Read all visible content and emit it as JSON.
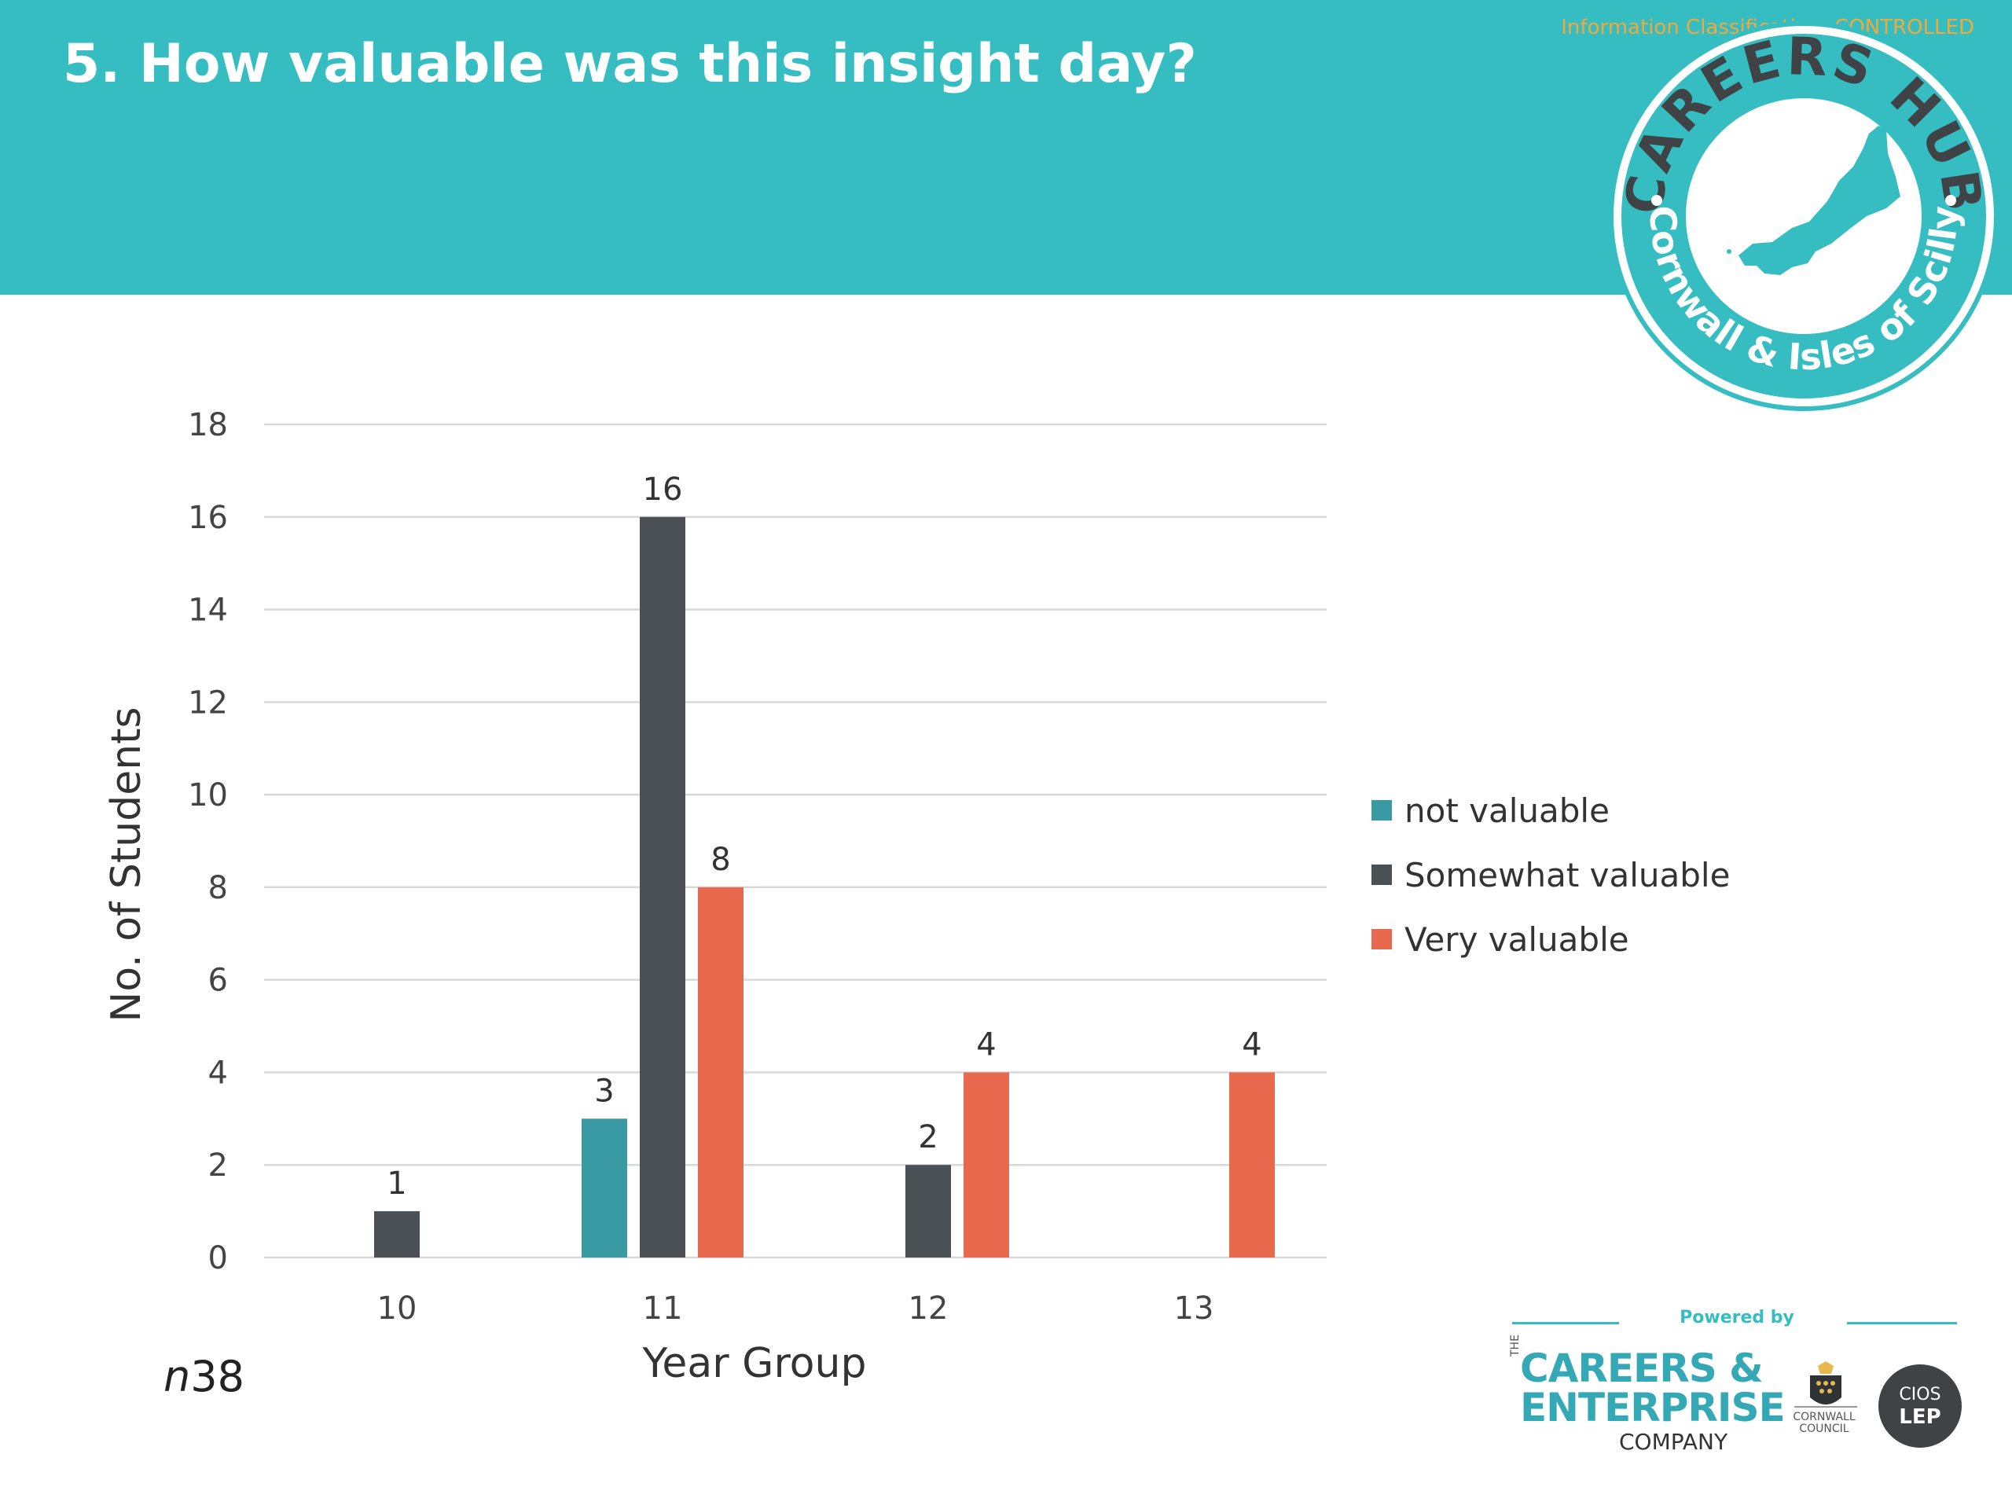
{
  "slide": {
    "title": "5. How valuable was this insight day?",
    "classification": "Information Classification: CONTROLLED",
    "n_prefix": "n",
    "n_value": "38"
  },
  "badge": {
    "top_text": "CAREERS HUB",
    "bottom_text": "Cornwall & Isles of Scilly",
    "colors": {
      "ring": "#35BDC1",
      "map": "#35BDC1"
    }
  },
  "chart_data": {
    "type": "bar",
    "categories": [
      "10",
      "11",
      "12",
      "13"
    ],
    "series": [
      {
        "name": "not valuable",
        "color": "#3A9AA3",
        "values": [
          0,
          3,
          0,
          0
        ]
      },
      {
        "name": "Somewhat valuable",
        "color": "#4B5054",
        "values": [
          1,
          16,
          2,
          0
        ]
      },
      {
        "name": "Very valuable",
        "color": "#E8694D",
        "values": [
          0,
          8,
          4,
          4
        ]
      }
    ],
    "data_labels": [
      {
        "category": "10",
        "series": "Somewhat valuable",
        "value": 1
      },
      {
        "category": "11",
        "series": "not valuable",
        "value": 3
      },
      {
        "category": "11",
        "series": "Somewhat valuable",
        "value": 16
      },
      {
        "category": "11",
        "series": "Very valuable",
        "value": 8
      },
      {
        "category": "12",
        "series": "Somewhat valuable",
        "value": 2
      },
      {
        "category": "12",
        "series": "Very valuable",
        "value": 4
      },
      {
        "category": "13",
        "series": "Very valuable",
        "value": 4
      }
    ],
    "title": "",
    "xlabel": "Year Group",
    "ylabel": "No. of Students",
    "ylim": [
      0,
      18
    ],
    "yticks": [
      0,
      2,
      4,
      6,
      8,
      10,
      12,
      14,
      16,
      18
    ],
    "grid": true,
    "legend": "right"
  },
  "footer": {
    "powered_by": "Powered by",
    "cec_the": "THE",
    "cec_line1": "CAREERS &",
    "cec_line2": "ENTERPRISE",
    "cec_line3": "COMPANY",
    "council_name": "CORNWALL COUNCIL",
    "lep_top": "CIOS",
    "lep_bottom": "LEP"
  }
}
